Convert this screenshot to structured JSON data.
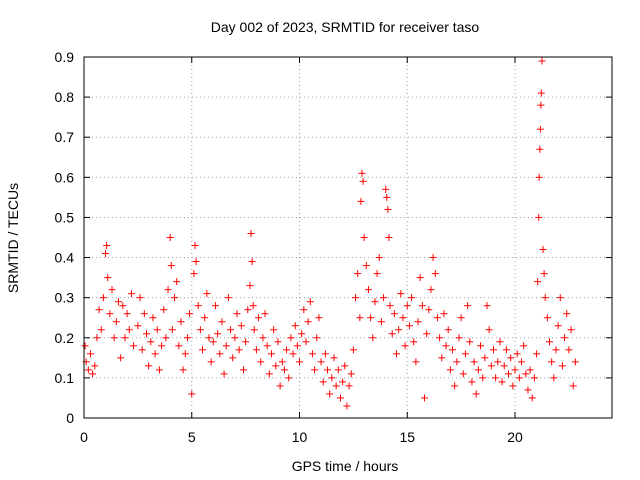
{
  "chart_data": {
    "type": "scatter",
    "title": "Day 002 of 2023, SRMTID for receiver taso",
    "xlabel": "GPS time / hours",
    "ylabel": "SRMTID / TECUs",
    "xlim": [
      0,
      24.5
    ],
    "ylim": [
      0,
      0.9
    ],
    "xticks": [
      0,
      5,
      10,
      15,
      20
    ],
    "yticks": [
      0,
      0.1,
      0.2,
      0.3,
      0.4,
      0.5,
      0.6,
      0.7,
      0.8,
      0.9
    ],
    "xtick_labels": [
      "0",
      "5",
      "10",
      "15",
      "20"
    ],
    "ytick_labels": [
      "0",
      "0.1",
      "0.2",
      "0.3",
      "0.4",
      "0.5",
      "0.6",
      "0.7",
      "0.8",
      "0.9"
    ],
    "grid": true,
    "marker": "+",
    "marker_color": "#ff0000",
    "series": [
      {
        "name": "SRMTID",
        "points": [
          [
            0.05,
            0.18
          ],
          [
            0.1,
            0.14
          ],
          [
            0.2,
            0.12
          ],
          [
            0.3,
            0.16
          ],
          [
            0.4,
            0.11
          ],
          [
            0.5,
            0.13
          ],
          [
            0.6,
            0.2
          ],
          [
            0.7,
            0.27
          ],
          [
            0.8,
            0.22
          ],
          [
            0.9,
            0.3
          ],
          [
            1.0,
            0.41
          ],
          [
            1.05,
            0.43
          ],
          [
            1.1,
            0.35
          ],
          [
            1.2,
            0.26
          ],
          [
            1.3,
            0.32
          ],
          [
            1.4,
            0.2
          ],
          [
            1.5,
            0.24
          ],
          [
            1.6,
            0.29
          ],
          [
            1.7,
            0.15
          ],
          [
            1.8,
            0.28
          ],
          [
            1.9,
            0.2
          ],
          [
            2.0,
            0.26
          ],
          [
            2.1,
            0.22
          ],
          [
            2.2,
            0.31
          ],
          [
            2.3,
            0.18
          ],
          [
            2.5,
            0.23
          ],
          [
            2.6,
            0.3
          ],
          [
            2.7,
            0.17
          ],
          [
            2.8,
            0.26
          ],
          [
            2.9,
            0.21
          ],
          [
            3.0,
            0.13
          ],
          [
            3.1,
            0.19
          ],
          [
            3.2,
            0.25
          ],
          [
            3.3,
            0.16
          ],
          [
            3.4,
            0.22
          ],
          [
            3.5,
            0.12
          ],
          [
            3.6,
            0.18
          ],
          [
            3.7,
            0.27
          ],
          [
            3.8,
            0.2
          ],
          [
            3.9,
            0.32
          ],
          [
            4.0,
            0.45
          ],
          [
            4.05,
            0.38
          ],
          [
            4.1,
            0.22
          ],
          [
            4.2,
            0.3
          ],
          [
            4.3,
            0.34
          ],
          [
            4.4,
            0.18
          ],
          [
            4.5,
            0.24
          ],
          [
            4.6,
            0.12
          ],
          [
            4.7,
            0.16
          ],
          [
            4.8,
            0.2
          ],
          [
            4.9,
            0.26
          ],
          [
            5.0,
            0.06
          ],
          [
            5.1,
            0.36
          ],
          [
            5.15,
            0.43
          ],
          [
            5.2,
            0.39
          ],
          [
            5.3,
            0.28
          ],
          [
            5.4,
            0.22
          ],
          [
            5.5,
            0.17
          ],
          [
            5.6,
            0.25
          ],
          [
            5.7,
            0.31
          ],
          [
            5.8,
            0.2
          ],
          [
            5.9,
            0.14
          ],
          [
            6.0,
            0.19
          ],
          [
            6.1,
            0.28
          ],
          [
            6.2,
            0.21
          ],
          [
            6.3,
            0.16
          ],
          [
            6.4,
            0.24
          ],
          [
            6.5,
            0.11
          ],
          [
            6.6,
            0.18
          ],
          [
            6.7,
            0.3
          ],
          [
            6.8,
            0.22
          ],
          [
            6.9,
            0.15
          ],
          [
            7.0,
            0.2
          ],
          [
            7.1,
            0.26
          ],
          [
            7.2,
            0.17
          ],
          [
            7.3,
            0.23
          ],
          [
            7.4,
            0.12
          ],
          [
            7.5,
            0.19
          ],
          [
            7.6,
            0.27
          ],
          [
            7.7,
            0.33
          ],
          [
            7.75,
            0.46
          ],
          [
            7.8,
            0.39
          ],
          [
            7.85,
            0.28
          ],
          [
            7.9,
            0.22
          ],
          [
            8.0,
            0.17
          ],
          [
            8.1,
            0.25
          ],
          [
            8.2,
            0.14
          ],
          [
            8.3,
            0.2
          ],
          [
            8.4,
            0.26
          ],
          [
            8.5,
            0.18
          ],
          [
            8.6,
            0.11
          ],
          [
            8.7,
            0.16
          ],
          [
            8.8,
            0.22
          ],
          [
            8.9,
            0.13
          ],
          [
            9.0,
            0.19
          ],
          [
            9.1,
            0.08
          ],
          [
            9.2,
            0.14
          ],
          [
            9.3,
            0.12
          ],
          [
            9.4,
            0.17
          ],
          [
            9.5,
            0.1
          ],
          [
            9.6,
            0.2
          ],
          [
            9.7,
            0.16
          ],
          [
            9.8,
            0.23
          ],
          [
            9.9,
            0.18
          ],
          [
            10.0,
            0.14
          ],
          [
            10.1,
            0.21
          ],
          [
            10.2,
            0.27
          ],
          [
            10.3,
            0.19
          ],
          [
            10.4,
            0.24
          ],
          [
            10.5,
            0.29
          ],
          [
            10.6,
            0.16
          ],
          [
            10.7,
            0.12
          ],
          [
            10.8,
            0.2
          ],
          [
            10.9,
            0.25
          ],
          [
            11.0,
            0.14
          ],
          [
            11.1,
            0.09
          ],
          [
            11.2,
            0.16
          ],
          [
            11.3,
            0.12
          ],
          [
            11.4,
            0.06
          ],
          [
            11.5,
            0.1
          ],
          [
            11.6,
            0.15
          ],
          [
            11.7,
            0.08
          ],
          [
            11.8,
            0.12
          ],
          [
            11.9,
            0.05
          ],
          [
            12.0,
            0.09
          ],
          [
            12.1,
            0.13
          ],
          [
            12.2,
            0.03
          ],
          [
            12.3,
            0.08
          ],
          [
            12.4,
            0.11
          ],
          [
            12.5,
            0.17
          ],
          [
            12.6,
            0.3
          ],
          [
            12.7,
            0.36
          ],
          [
            12.8,
            0.25
          ],
          [
            12.85,
            0.54
          ],
          [
            12.9,
            0.61
          ],
          [
            12.95,
            0.59
          ],
          [
            13.0,
            0.45
          ],
          [
            13.1,
            0.38
          ],
          [
            13.2,
            0.32
          ],
          [
            13.3,
            0.25
          ],
          [
            13.4,
            0.2
          ],
          [
            13.5,
            0.29
          ],
          [
            13.6,
            0.36
          ],
          [
            13.7,
            0.4
          ],
          [
            13.8,
            0.24
          ],
          [
            13.9,
            0.3
          ],
          [
            14.0,
            0.57
          ],
          [
            14.05,
            0.55
          ],
          [
            14.1,
            0.52
          ],
          [
            14.15,
            0.45
          ],
          [
            14.2,
            0.28
          ],
          [
            14.3,
            0.21
          ],
          [
            14.4,
            0.26
          ],
          [
            14.5,
            0.16
          ],
          [
            14.6,
            0.22
          ],
          [
            14.7,
            0.31
          ],
          [
            14.8,
            0.25
          ],
          [
            14.9,
            0.18
          ],
          [
            15.0,
            0.28
          ],
          [
            15.1,
            0.23
          ],
          [
            15.2,
            0.3
          ],
          [
            15.3,
            0.19
          ],
          [
            15.4,
            0.14
          ],
          [
            15.5,
            0.24
          ],
          [
            15.6,
            0.35
          ],
          [
            15.7,
            0.28
          ],
          [
            15.8,
            0.05
          ],
          [
            15.9,
            0.21
          ],
          [
            16.0,
            0.27
          ],
          [
            16.1,
            0.32
          ],
          [
            16.2,
            0.4
          ],
          [
            16.3,
            0.36
          ],
          [
            16.4,
            0.25
          ],
          [
            16.5,
            0.2
          ],
          [
            16.6,
            0.15
          ],
          [
            16.7,
            0.26
          ],
          [
            16.8,
            0.18
          ],
          [
            16.9,
            0.22
          ],
          [
            17.0,
            0.12
          ],
          [
            17.1,
            0.17
          ],
          [
            17.2,
            0.08
          ],
          [
            17.3,
            0.14
          ],
          [
            17.4,
            0.2
          ],
          [
            17.5,
            0.25
          ],
          [
            17.6,
            0.11
          ],
          [
            17.7,
            0.16
          ],
          [
            17.8,
            0.28
          ],
          [
            17.9,
            0.19
          ],
          [
            18.0,
            0.09
          ],
          [
            18.1,
            0.14
          ],
          [
            18.2,
            0.06
          ],
          [
            18.3,
            0.12
          ],
          [
            18.4,
            0.18
          ],
          [
            18.5,
            0.1
          ],
          [
            18.6,
            0.15
          ],
          [
            18.7,
            0.28
          ],
          [
            18.8,
            0.22
          ],
          [
            18.9,
            0.13
          ],
          [
            19.0,
            0.17
          ],
          [
            19.1,
            0.1
          ],
          [
            19.2,
            0.14
          ],
          [
            19.3,
            0.19
          ],
          [
            19.4,
            0.09
          ],
          [
            19.5,
            0.13
          ],
          [
            19.6,
            0.17
          ],
          [
            19.7,
            0.11
          ],
          [
            19.8,
            0.15
          ],
          [
            19.9,
            0.08
          ],
          [
            20.0,
            0.12
          ],
          [
            20.1,
            0.16
          ],
          [
            20.2,
            0.1
          ],
          [
            20.3,
            0.14
          ],
          [
            20.4,
            0.18
          ],
          [
            20.5,
            0.11
          ],
          [
            20.6,
            0.07
          ],
          [
            20.7,
            0.12
          ],
          [
            20.8,
            0.05
          ],
          [
            20.9,
            0.1
          ],
          [
            21.0,
            0.16
          ],
          [
            21.05,
            0.34
          ],
          [
            21.1,
            0.5
          ],
          [
            21.12,
            0.6
          ],
          [
            21.15,
            0.67
          ],
          [
            21.18,
            0.72
          ],
          [
            21.2,
            0.78
          ],
          [
            21.22,
            0.81
          ],
          [
            21.25,
            0.89
          ],
          [
            21.3,
            0.42
          ],
          [
            21.35,
            0.36
          ],
          [
            21.4,
            0.3
          ],
          [
            21.5,
            0.25
          ],
          [
            21.6,
            0.19
          ],
          [
            21.7,
            0.14
          ],
          [
            21.8,
            0.1
          ],
          [
            21.9,
            0.17
          ],
          [
            22.0,
            0.23
          ],
          [
            22.1,
            0.3
          ],
          [
            22.2,
            0.13
          ],
          [
            22.3,
            0.2
          ],
          [
            22.4,
            0.26
          ],
          [
            22.5,
            0.17
          ],
          [
            22.6,
            0.22
          ],
          [
            22.7,
            0.08
          ],
          [
            22.8,
            0.14
          ]
        ]
      }
    ]
  }
}
